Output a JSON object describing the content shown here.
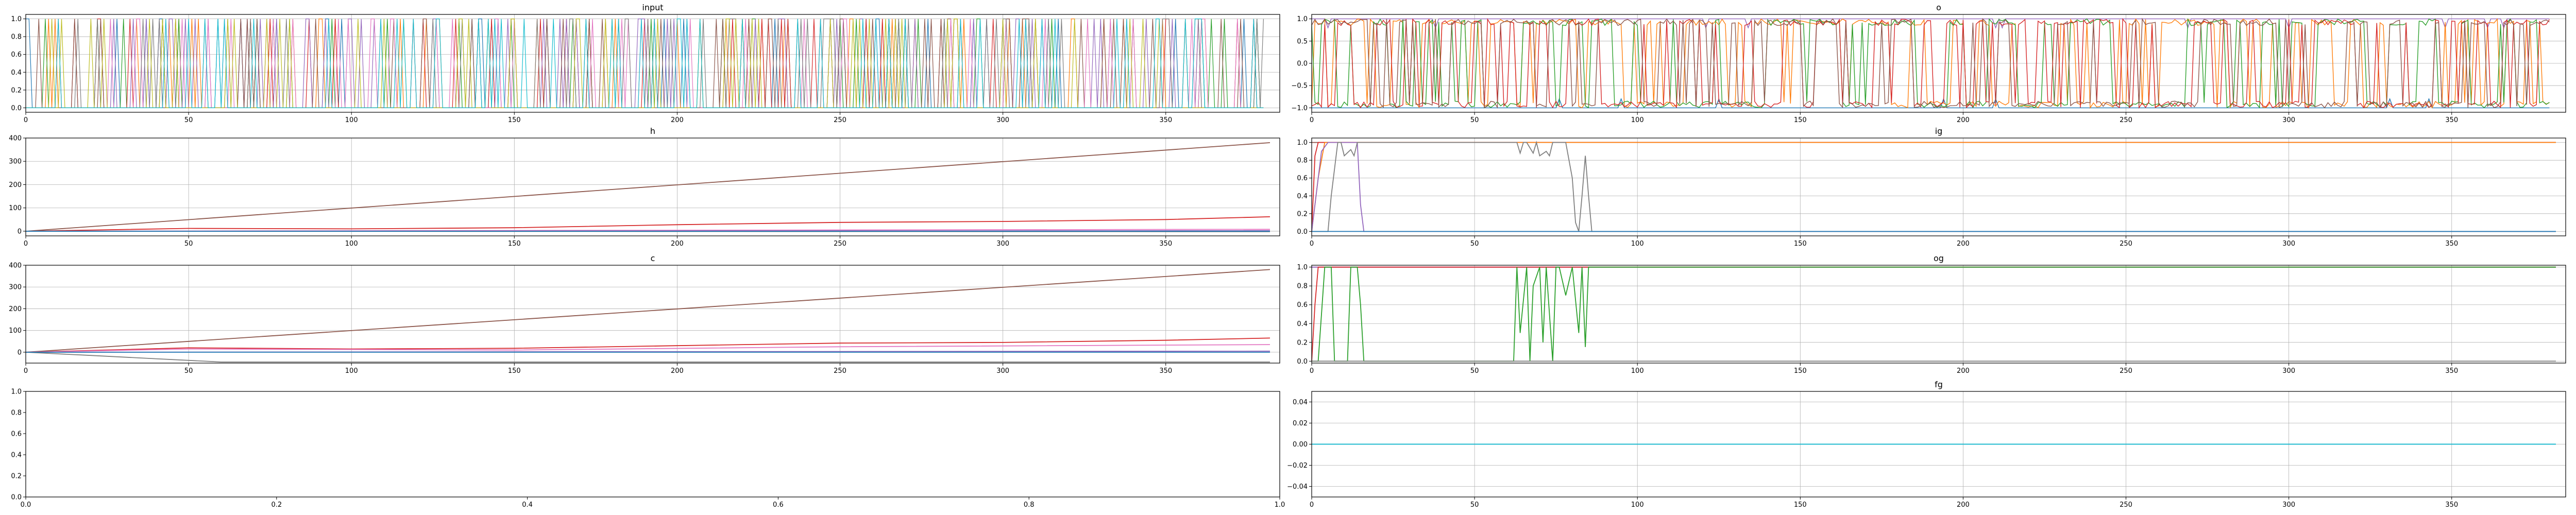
{
  "figure": {
    "palette": [
      "#1f77b4",
      "#ff7f0e",
      "#2ca02c",
      "#d62728",
      "#9467bd",
      "#8c564b",
      "#e377c2",
      "#7f7f7f",
      "#bcbd22",
      "#17becf"
    ]
  },
  "chart_data": [
    {
      "id": "input",
      "type": "line",
      "title": "input",
      "xlim": [
        0,
        385
      ],
      "xticks": [
        0,
        50,
        100,
        150,
        200,
        250,
        300,
        350
      ],
      "ylim": [
        -0.05,
        1.05
      ],
      "yticks": [
        0.0,
        0.2,
        0.4,
        0.6,
        0.8,
        1.0
      ],
      "ytick_labels": [
        "0.0",
        "0.2",
        "0.4",
        "0.6",
        "0.8",
        "1.0"
      ],
      "grid": true,
      "n_points": 381,
      "series_pattern": "dense_binary_0_1_many_series",
      "n_series": 10
    },
    {
      "id": "o",
      "type": "line",
      "title": "o",
      "xlim": [
        0,
        385
      ],
      "xticks": [
        0,
        50,
        100,
        150,
        200,
        250,
        300,
        350
      ],
      "ylim": [
        -1.1,
        1.1
      ],
      "yticks": [
        -1.0,
        -0.5,
        0.0,
        0.5,
        1.0
      ],
      "ytick_labels": [
        "−1.0",
        "−0.5",
        "0.0",
        "0.5",
        "1.0"
      ],
      "grid": true,
      "n_points": 381,
      "series_pattern": "oscillating_between_-1_and_1",
      "n_series": 6,
      "notes_visible": [
        "purple series mostly at 1.0",
        "blue series mostly at -1.0"
      ]
    },
    {
      "id": "h",
      "type": "line",
      "title": "h",
      "xlim": [
        0,
        385
      ],
      "xticks": [
        0,
        50,
        100,
        150,
        200,
        250,
        300,
        350
      ],
      "ylim": [
        -20,
        400
      ],
      "yticks": [
        0,
        100,
        200,
        300,
        400
      ],
      "ytick_labels": [
        "0",
        "100",
        "200",
        "300",
        "400"
      ],
      "grid": true,
      "series": [
        {
          "color": "#8c564b",
          "x": [
            0,
            382
          ],
          "y": [
            0,
            380
          ]
        },
        {
          "color": "#d62728",
          "x": [
            0,
            50,
            100,
            150,
            200,
            250,
            300,
            350,
            382
          ],
          "y": [
            0,
            12,
            10,
            15,
            28,
            38,
            42,
            50,
            62
          ]
        },
        {
          "color": "#e377c2",
          "x": [
            0,
            382
          ],
          "y": [
            0,
            8
          ]
        },
        {
          "color": "#9467bd",
          "x": [
            0,
            382
          ],
          "y": [
            0,
            2
          ]
        },
        {
          "color": "#7f7f7f",
          "x": [
            0,
            382
          ],
          "y": [
            0,
            -2
          ]
        },
        {
          "color": "#1f77b4",
          "x": [
            0,
            382
          ],
          "y": [
            0,
            0
          ]
        }
      ]
    },
    {
      "id": "ig",
      "type": "line",
      "title": "ig",
      "xlim": [
        0,
        385
      ],
      "xticks": [
        0,
        50,
        100,
        150,
        200,
        250,
        300,
        350
      ],
      "ylim": [
        -0.05,
        1.05
      ],
      "yticks": [
        0.0,
        0.2,
        0.4,
        0.6,
        0.8,
        1.0
      ],
      "ytick_labels": [
        "0.0",
        "0.2",
        "0.4",
        "0.6",
        "0.8",
        "1.0"
      ],
      "grid": true,
      "series": [
        {
          "color": "#8c564b",
          "x": [
            0,
            382
          ],
          "y": [
            1.0,
            1.0
          ]
        },
        {
          "color": "#d62728",
          "x": [
            0,
            1,
            2,
            3,
            382
          ],
          "y": [
            0.0,
            0.85,
            1.0,
            1.0,
            1.0
          ]
        },
        {
          "color": "#ff7f0e",
          "x": [
            0,
            2,
            4,
            382
          ],
          "y": [
            0.0,
            0.6,
            1.0,
            1.0
          ]
        },
        {
          "color": "#9467bd",
          "x": [
            0,
            3,
            5,
            7,
            14,
            15,
            16,
            382
          ],
          "y": [
            0.0,
            0.9,
            1.0,
            1.0,
            1.0,
            0.3,
            0.0,
            0.0
          ]
        },
        {
          "color": "#7f7f7f",
          "x": [
            0,
            5,
            6,
            8,
            9,
            10,
            12,
            13,
            14,
            62,
            63,
            64,
            65,
            66,
            68,
            69,
            70,
            72,
            73,
            74,
            76,
            78,
            80,
            81,
            82,
            83,
            84,
            85,
            86,
            382
          ],
          "y": [
            0.0,
            0.0,
            0.4,
            1.0,
            1.0,
            0.85,
            0.92,
            0.85,
            1.0,
            1.0,
            1.0,
            0.88,
            1.0,
            1.0,
            0.88,
            1.0,
            0.85,
            0.9,
            0.85,
            1.0,
            1.0,
            1.0,
            0.6,
            0.1,
            0.0,
            0.4,
            0.85,
            0.4,
            0.0,
            0.0
          ]
        },
        {
          "color": "#1f77b4",
          "x": [
            0,
            382
          ],
          "y": [
            0.0,
            0.0
          ]
        }
      ]
    },
    {
      "id": "c",
      "type": "line",
      "title": "c",
      "xlim": [
        0,
        385
      ],
      "xticks": [
        0,
        50,
        100,
        150,
        200,
        250,
        300,
        350
      ],
      "ylim": [
        -50,
        400
      ],
      "yticks": [
        0,
        100,
        200,
        300,
        400
      ],
      "ytick_labels": [
        "0",
        "100",
        "200",
        "300",
        "400"
      ],
      "grid": true,
      "series": [
        {
          "color": "#8c564b",
          "x": [
            0,
            382
          ],
          "y": [
            0,
            380
          ]
        },
        {
          "color": "#d62728",
          "x": [
            0,
            50,
            100,
            150,
            200,
            250,
            300,
            350,
            382
          ],
          "y": [
            0,
            20,
            15,
            18,
            30,
            42,
            45,
            55,
            65
          ]
        },
        {
          "color": "#e377c2",
          "x": [
            0,
            50,
            150,
            250,
            382
          ],
          "y": [
            0,
            15,
            10,
            25,
            35
          ]
        },
        {
          "color": "#9467bd",
          "x": [
            0,
            382
          ],
          "y": [
            0,
            5
          ]
        },
        {
          "color": "#7f7f7f",
          "x": [
            0,
            20,
            40,
            60,
            382
          ],
          "y": [
            0,
            -15,
            -30,
            -45,
            -45
          ]
        },
        {
          "color": "#1f77b4",
          "x": [
            0,
            382
          ],
          "y": [
            0,
            0
          ]
        }
      ]
    },
    {
      "id": "og",
      "type": "line",
      "title": "og",
      "xlim": [
        0,
        385
      ],
      "xticks": [
        0,
        50,
        100,
        150,
        200,
        250,
        300,
        350
      ],
      "ylim": [
        -0.02,
        1.02
      ],
      "yticks": [
        0.0,
        0.2,
        0.4,
        0.6,
        0.8,
        1.0
      ],
      "ytick_labels": [
        "0.0",
        "0.2",
        "0.4",
        "0.6",
        "0.8",
        "1.0"
      ],
      "grid": true,
      "series": [
        {
          "color": "#e377c2",
          "x": [
            0,
            382
          ],
          "y": [
            1.0,
            1.0
          ]
        },
        {
          "color": "#9467bd",
          "x": [
            0,
            382
          ],
          "y": [
            1.0,
            1.0
          ]
        },
        {
          "color": "#d62728",
          "x": [
            0,
            1,
            2,
            382
          ],
          "y": [
            0.0,
            0.6,
            1.0,
            1.0
          ]
        },
        {
          "color": "#2ca02c",
          "x": [
            0,
            2,
            3,
            4,
            6,
            7,
            10,
            11,
            12,
            14,
            15,
            16,
            60,
            62,
            63,
            64,
            66,
            67,
            68,
            70,
            71,
            72,
            74,
            75,
            76,
            78,
            80,
            82,
            83,
            84,
            85,
            382
          ],
          "y": [
            0.0,
            0.0,
            0.5,
            1.0,
            1.0,
            0.0,
            0.0,
            0.0,
            1.0,
            1.0,
            0.6,
            0.0,
            0.0,
            0.0,
            1.0,
            0.3,
            1.0,
            0.0,
            0.8,
            1.0,
            0.2,
            1.0,
            0.0,
            1.0,
            1.0,
            0.7,
            1.0,
            0.3,
            1.0,
            0.15,
            1.0,
            1.0
          ]
        },
        {
          "color": "#7f7f7f",
          "x": [
            0,
            382
          ],
          "y": [
            0.0,
            0.0
          ]
        }
      ]
    },
    {
      "id": "empty",
      "type": "line",
      "title": "",
      "xlim": [
        0,
        1
      ],
      "xticks": [
        0.0,
        0.2,
        0.4,
        0.6,
        0.8,
        1.0
      ],
      "xtick_labels": [
        "0.0",
        "0.2",
        "0.4",
        "0.6",
        "0.8",
        "1.0"
      ],
      "ylim": [
        0,
        1
      ],
      "yticks": [
        0.0,
        0.2,
        0.4,
        0.6,
        0.8,
        1.0
      ],
      "ytick_labels": [
        "0.0",
        "0.2",
        "0.4",
        "0.6",
        "0.8",
        "1.0"
      ],
      "grid": false,
      "series": []
    },
    {
      "id": "fg",
      "type": "line",
      "title": "fg",
      "xlim": [
        0,
        385
      ],
      "xticks": [
        0,
        50,
        100,
        150,
        200,
        250,
        300,
        350
      ],
      "ylim": [
        -0.05,
        0.05
      ],
      "yticks": [
        -0.04,
        -0.02,
        0.0,
        0.02,
        0.04
      ],
      "ytick_labels": [
        "−0.04",
        "−0.02",
        "0.00",
        "0.02",
        "0.04"
      ],
      "grid": true,
      "series": [
        {
          "color": "#1f77b4",
          "x": [
            0,
            382
          ],
          "y": [
            0.0,
            0.0
          ]
        },
        {
          "color": "#17becf",
          "x": [
            0,
            382
          ],
          "y": [
            0.0,
            0.0
          ]
        }
      ]
    }
  ]
}
